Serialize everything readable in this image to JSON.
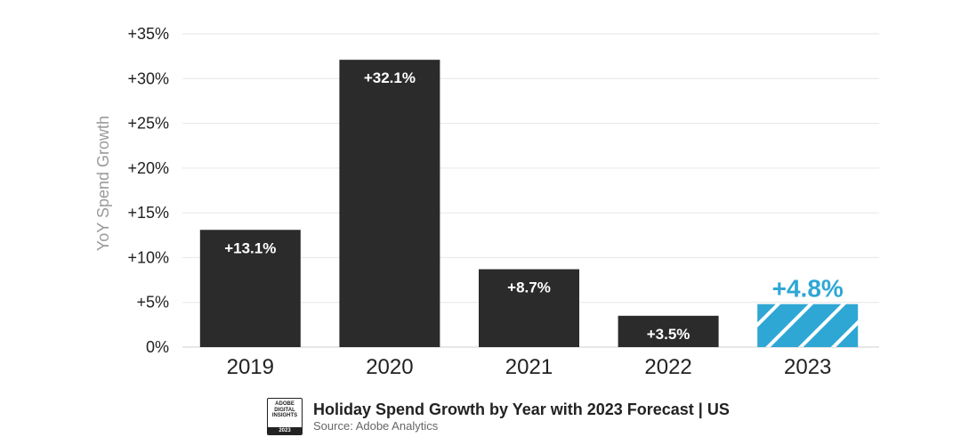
{
  "chart_data": {
    "type": "bar",
    "title": "Holiday Spend Growth by Year with 2023 Forecast | US",
    "source": "Source: Adobe Analytics",
    "ylabel": "YoY Spend Growth",
    "xlabel": "",
    "ylim": [
      0,
      35
    ],
    "yticks": [
      {
        "value": 0,
        "label": "0%"
      },
      {
        "value": 5,
        "label": "+5%"
      },
      {
        "value": 10,
        "label": "+10%"
      },
      {
        "value": 15,
        "label": "+15%"
      },
      {
        "value": 20,
        "label": "+20%"
      },
      {
        "value": 25,
        "label": "+25%"
      },
      {
        "value": 30,
        "label": "+30%"
      },
      {
        "value": 35,
        "label": "+35%"
      }
    ],
    "grid": true,
    "categories": [
      "2019",
      "2020",
      "2021",
      "2022",
      "2023"
    ],
    "values": [
      13.1,
      32.1,
      8.7,
      3.5,
      4.8
    ],
    "data_labels": [
      "+13.1%",
      "+32.1%",
      "+8.7%",
      "+3.5%",
      "+4.8%"
    ],
    "forecast": [
      false,
      false,
      false,
      false,
      true
    ]
  },
  "colors": {
    "bar": "#2b2b2b",
    "forecast": "#2fa7d4",
    "grid": "#e6e6e6"
  },
  "badge": {
    "lines": [
      "ADOBE",
      "DIGITAL",
      "INSIGHTS"
    ],
    "year": "2023"
  },
  "footer": {
    "title": "Holiday Spend Growth by Year with 2023 Forecast | US",
    "source": "Source: Adobe Analytics"
  }
}
